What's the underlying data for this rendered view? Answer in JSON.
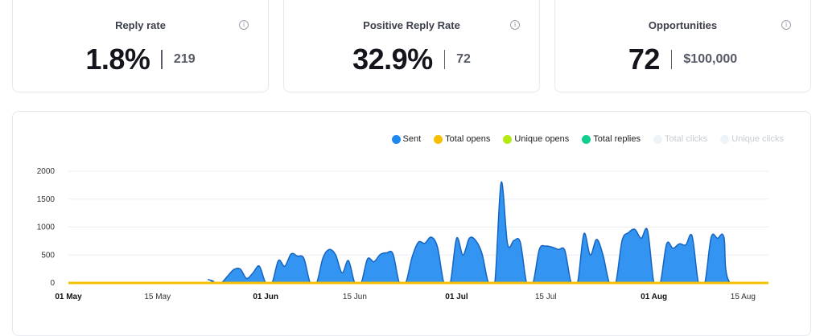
{
  "cards": [
    {
      "title": "Reply rate",
      "value": "1.8%",
      "secondary": "219",
      "info": "i"
    },
    {
      "title": "Positive Reply Rate",
      "value": "32.9%",
      "secondary": "72",
      "info": "i"
    },
    {
      "title": "Opportunities",
      "value": "72",
      "secondary": "$100,000",
      "info": "i"
    }
  ],
  "legend": [
    {
      "label": "Sent",
      "color": "#1e88f0",
      "active": true
    },
    {
      "label": "Total opens",
      "color": "#f6c000",
      "active": true
    },
    {
      "label": "Unique opens",
      "color": "#b5ea10",
      "active": true
    },
    {
      "label": "Total replies",
      "color": "#10cf8e",
      "active": true
    },
    {
      "label": "Total clicks",
      "color": "#eef3f8",
      "active": false
    },
    {
      "label": "Unique clicks",
      "color": "#eef3f8",
      "active": false
    }
  ],
  "chart_data": {
    "type": "area",
    "ylim": [
      0,
      2000
    ],
    "y_ticks": [
      "0",
      "500",
      "1000",
      "1500",
      "2000"
    ],
    "x_start": "2024-05-01",
    "x_end": "2024-08-19",
    "x_ticks": [
      {
        "label": "01 May",
        "date": "2024-05-01",
        "major": true
      },
      {
        "label": "15 May",
        "date": "2024-05-15",
        "major": false
      },
      {
        "label": "01 Jun",
        "date": "2024-06-01",
        "major": true
      },
      {
        "label": "15 Jun",
        "date": "2024-06-15",
        "major": false
      },
      {
        "label": "01 Jul",
        "date": "2024-07-01",
        "major": true
      },
      {
        "label": "15 Jul",
        "date": "2024-07-15",
        "major": false
      },
      {
        "label": "01 Aug",
        "date": "2024-08-01",
        "major": true
      },
      {
        "label": "15 Aug",
        "date": "2024-08-15",
        "major": false
      }
    ],
    "grid": true,
    "legend_position": "top-right",
    "series": [
      {
        "name": "Sent",
        "color": "#1e88f0",
        "points": [
          [
            "2024-05-01",
            0
          ],
          [
            "2024-05-22",
            0
          ],
          [
            "2024-05-23",
            60
          ],
          [
            "2024-05-24",
            0
          ],
          [
            "2024-05-25",
            0
          ],
          [
            "2024-05-26",
            120
          ],
          [
            "2024-05-27",
            240
          ],
          [
            "2024-05-28",
            250
          ],
          [
            "2024-05-29",
            80
          ],
          [
            "2024-05-30",
            180
          ],
          [
            "2024-05-31",
            300
          ],
          [
            "2024-06-01",
            0
          ],
          [
            "2024-06-02",
            0
          ],
          [
            "2024-06-03",
            400
          ],
          [
            "2024-06-04",
            300
          ],
          [
            "2024-06-05",
            520
          ],
          [
            "2024-06-06",
            480
          ],
          [
            "2024-06-07",
            440
          ],
          [
            "2024-06-08",
            0
          ],
          [
            "2024-06-09",
            0
          ],
          [
            "2024-06-10",
            450
          ],
          [
            "2024-06-11",
            600
          ],
          [
            "2024-06-12",
            500
          ],
          [
            "2024-06-13",
            180
          ],
          [
            "2024-06-14",
            400
          ],
          [
            "2024-06-15",
            0
          ],
          [
            "2024-06-16",
            0
          ],
          [
            "2024-06-17",
            430
          ],
          [
            "2024-06-18",
            380
          ],
          [
            "2024-06-19",
            510
          ],
          [
            "2024-06-20",
            540
          ],
          [
            "2024-06-21",
            520
          ],
          [
            "2024-06-22",
            0
          ],
          [
            "2024-06-23",
            0
          ],
          [
            "2024-06-24",
            460
          ],
          [
            "2024-06-25",
            730
          ],
          [
            "2024-06-26",
            710
          ],
          [
            "2024-06-27",
            820
          ],
          [
            "2024-06-28",
            640
          ],
          [
            "2024-06-29",
            0
          ],
          [
            "2024-06-30",
            0
          ],
          [
            "2024-07-01",
            800
          ],
          [
            "2024-07-02",
            500
          ],
          [
            "2024-07-03",
            800
          ],
          [
            "2024-07-04",
            760
          ],
          [
            "2024-07-05",
            520
          ],
          [
            "2024-07-06",
            0
          ],
          [
            "2024-07-07",
            0
          ],
          [
            "2024-07-08",
            1800
          ],
          [
            "2024-07-09",
            700
          ],
          [
            "2024-07-10",
            760
          ],
          [
            "2024-07-11",
            730
          ],
          [
            "2024-07-12",
            0
          ],
          [
            "2024-07-13",
            0
          ],
          [
            "2024-07-14",
            600
          ],
          [
            "2024-07-15",
            660
          ],
          [
            "2024-07-16",
            640
          ],
          [
            "2024-07-17",
            600
          ],
          [
            "2024-07-18",
            580
          ],
          [
            "2024-07-19",
            0
          ],
          [
            "2024-07-20",
            0
          ],
          [
            "2024-07-21",
            880
          ],
          [
            "2024-07-22",
            500
          ],
          [
            "2024-07-23",
            780
          ],
          [
            "2024-07-24",
            500
          ],
          [
            "2024-07-25",
            0
          ],
          [
            "2024-07-26",
            0
          ],
          [
            "2024-07-27",
            760
          ],
          [
            "2024-07-28",
            900
          ],
          [
            "2024-07-29",
            960
          ],
          [
            "2024-07-30",
            800
          ],
          [
            "2024-07-31",
            940
          ],
          [
            "2024-08-01",
            0
          ],
          [
            "2024-08-02",
            0
          ],
          [
            "2024-08-03",
            700
          ],
          [
            "2024-08-04",
            620
          ],
          [
            "2024-08-05",
            700
          ],
          [
            "2024-08-06",
            680
          ],
          [
            "2024-08-07",
            840
          ],
          [
            "2024-08-08",
            0
          ],
          [
            "2024-08-09",
            0
          ],
          [
            "2024-08-10",
            820
          ],
          [
            "2024-08-11",
            800
          ],
          [
            "2024-08-12",
            820
          ],
          [
            "2024-08-13",
            0
          ],
          [
            "2024-08-19",
            0
          ]
        ]
      },
      {
        "name": "Total opens",
        "color": "#f6c000",
        "points": [
          [
            "2024-05-01",
            0
          ],
          [
            "2024-08-19",
            0
          ]
        ]
      },
      {
        "name": "Unique opens",
        "color": "#b5ea10",
        "points": [
          [
            "2024-05-01",
            0
          ],
          [
            "2024-08-19",
            0
          ]
        ]
      },
      {
        "name": "Total replies",
        "color": "#10cf8e",
        "points": [
          [
            "2024-05-01",
            0
          ],
          [
            "2024-08-19",
            0
          ]
        ]
      }
    ]
  }
}
